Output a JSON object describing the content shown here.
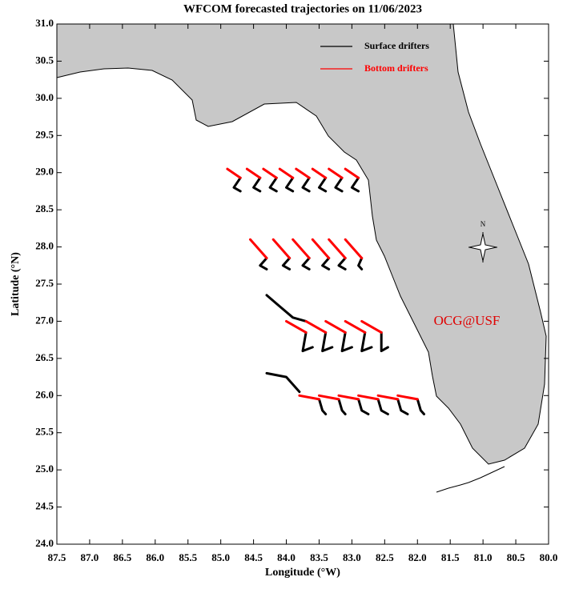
{
  "chart_data": {
    "type": "trajectory-map",
    "title": "WFCOM forecasted trajectories on 11/06/2023",
    "x_label": "Longitude (°W)",
    "y_label": "Latitude (°N)",
    "annotation": "OCG@USF",
    "xlim": [
      87.5,
      80.0
    ],
    "ylim": [
      24.0,
      31.0
    ],
    "xticks": [
      87.5,
      {
        "value": 87,
        "label": "87.0"
      },
      86.5,
      {
        "value": 86,
        "label": "86.0"
      },
      85.5,
      {
        "value": 85,
        "label": "85.0"
      },
      84.5,
      {
        "value": 84,
        "label": "84.0"
      },
      83.5,
      {
        "value": 83,
        "label": "83.0"
      },
      82.5,
      {
        "value": 82,
        "label": "82.0"
      },
      81.5,
      {
        "value": 81,
        "label": "81.0"
      },
      80.5,
      {
        "value": 80,
        "label": "80.0"
      }
    ],
    "yticks": [
      {
        "value": 24,
        "label": "24.0"
      },
      24.5,
      {
        "value": 25,
        "label": "25.0"
      },
      25.5,
      {
        "value": 26,
        "label": "26.0"
      },
      26.5,
      {
        "value": 27,
        "label": "27.0"
      },
      27.5,
      {
        "value": 28,
        "label": "28.0"
      },
      28.5,
      {
        "value": 29,
        "label": "29.0"
      },
      29.5,
      {
        "value": 30,
        "label": "30.0"
      },
      30.5,
      {
        "value": 31,
        "label": "31.0"
      }
    ],
    "series": [
      {
        "name": "Surface drifters",
        "color": "#000000",
        "x": [
          84.7,
          84.8,
          84.7,
          null,
          84.4,
          84.5,
          84.4,
          null,
          84.15,
          84.25,
          84.15,
          null,
          83.9,
          84.0,
          83.9,
          null,
          83.65,
          83.75,
          83.65,
          null,
          83.4,
          83.5,
          83.4,
          null,
          83.15,
          83.25,
          83.15,
          null,
          82.9,
          83.0,
          82.9,
          null,
          84.3,
          84.4,
          84.3,
          null,
          83.95,
          84.05,
          83.95,
          null,
          83.65,
          83.75,
          83.65,
          null,
          83.35,
          83.45,
          83.35,
          null,
          83.1,
          83.2,
          83.1,
          null,
          82.85,
          82.9,
          82.85,
          null,
          84.3,
          84.1,
          83.9,
          83.7,
          null,
          83.7,
          83.75,
          83.6,
          null,
          83.4,
          83.45,
          83.3,
          null,
          83.1,
          83.15,
          83.0,
          null,
          82.8,
          82.85,
          82.7,
          null,
          82.55,
          82.55,
          82.45,
          null,
          84.3,
          84.0,
          83.8,
          null,
          83.5,
          83.45,
          83.4,
          null,
          83.2,
          83.15,
          83.1,
          null,
          82.9,
          82.85,
          82.75,
          null,
          82.6,
          82.55,
          82.45,
          null,
          82.3,
          82.25,
          82.15,
          null,
          82.0,
          81.95,
          81.9
        ],
        "y": [
          28.93,
          28.8,
          28.75,
          null,
          28.93,
          28.8,
          28.75,
          null,
          28.93,
          28.8,
          28.75,
          null,
          28.93,
          28.8,
          28.75,
          null,
          28.93,
          28.8,
          28.75,
          null,
          28.93,
          28.8,
          28.75,
          null,
          28.93,
          28.8,
          28.75,
          null,
          28.93,
          28.8,
          28.75,
          null,
          27.85,
          27.75,
          27.7,
          null,
          27.85,
          27.75,
          27.7,
          null,
          27.85,
          27.75,
          27.7,
          null,
          27.85,
          27.75,
          27.7,
          null,
          27.85,
          27.75,
          27.7,
          null,
          27.85,
          27.75,
          27.7,
          null,
          27.35,
          27.2,
          27.05,
          27.0,
          null,
          26.85,
          26.6,
          26.65,
          null,
          26.85,
          26.6,
          26.65,
          null,
          26.85,
          26.6,
          26.65,
          null,
          26.85,
          26.6,
          26.65,
          null,
          26.85,
          26.6,
          26.65,
          null,
          26.3,
          26.25,
          26.05,
          null,
          25.95,
          25.8,
          25.75,
          null,
          25.95,
          25.8,
          25.75,
          null,
          25.95,
          25.8,
          25.75,
          null,
          25.95,
          25.8,
          25.75,
          null,
          25.95,
          25.8,
          25.75,
          null,
          25.95,
          25.8,
          25.75
        ]
      },
      {
        "name": "Bottom drifters",
        "color": "#ff0000",
        "x": [
          84.9,
          84.7,
          null,
          84.6,
          84.4,
          null,
          84.35,
          84.15,
          null,
          84.1,
          83.9,
          null,
          83.85,
          83.65,
          null,
          83.6,
          83.4,
          null,
          83.35,
          83.15,
          null,
          83.1,
          82.9,
          null,
          84.55,
          84.3,
          null,
          84.2,
          83.95,
          null,
          83.9,
          83.65,
          null,
          83.6,
          83.35,
          null,
          83.35,
          83.1,
          null,
          83.1,
          82.85,
          null,
          84.0,
          83.7,
          null,
          83.7,
          83.4,
          null,
          83.4,
          83.1,
          null,
          83.1,
          82.8,
          null,
          82.85,
          82.55,
          null,
          83.8,
          83.5,
          null,
          83.5,
          83.2,
          null,
          83.2,
          82.9,
          null,
          82.9,
          82.6,
          null,
          82.6,
          82.3,
          null,
          82.3,
          82.0
        ],
        "y": [
          29.05,
          28.93,
          null,
          29.05,
          28.93,
          null,
          29.05,
          28.93,
          null,
          29.05,
          28.93,
          null,
          29.05,
          28.93,
          null,
          29.05,
          28.93,
          null,
          29.05,
          28.93,
          null,
          29.05,
          28.93,
          null,
          28.1,
          27.85,
          null,
          28.1,
          27.85,
          null,
          28.1,
          27.85,
          null,
          28.1,
          27.85,
          null,
          28.1,
          27.85,
          null,
          28.1,
          27.85,
          null,
          27.0,
          26.85,
          null,
          27.0,
          26.85,
          null,
          27.0,
          26.85,
          null,
          27.0,
          26.85,
          null,
          27.0,
          26.85,
          null,
          26.0,
          25.95,
          null,
          26.0,
          25.95,
          null,
          26.0,
          25.95,
          null,
          26.0,
          25.95,
          null,
          26.0,
          25.95,
          null,
          26.0,
          25.95
        ]
      }
    ]
  }
}
